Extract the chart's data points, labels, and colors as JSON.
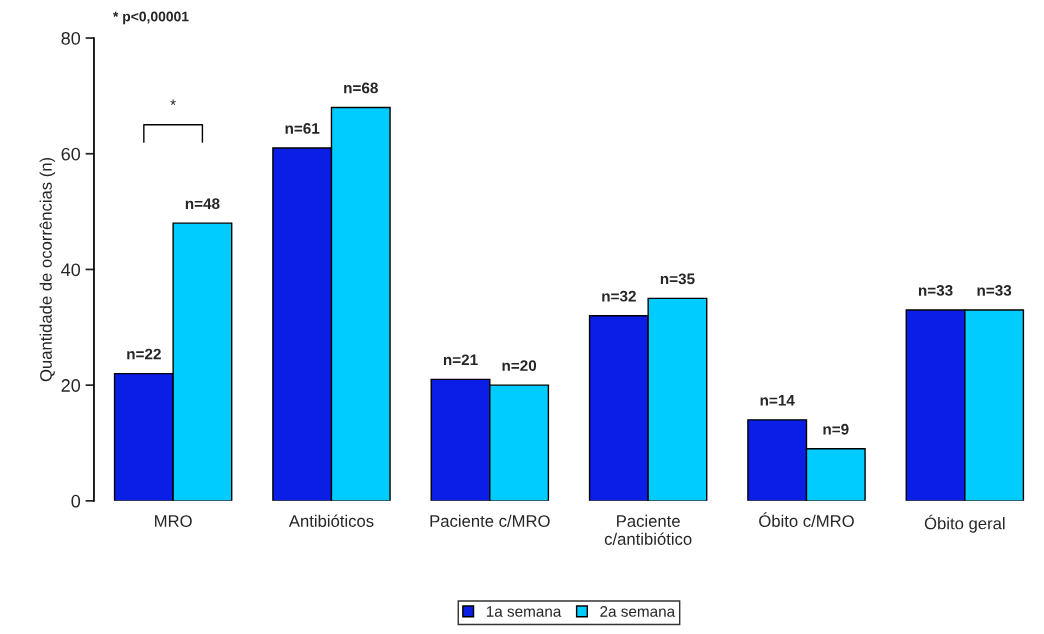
{
  "chart_data": {
    "type": "bar",
    "ylabel": "Quantidade de ocorrências (n)",
    "categories": [
      "MRO",
      "Antibióticos",
      "Paciente c/MRO",
      "Paciente\nc/antibiótico",
      "Óbito c/MRO",
      "Óbito geral"
    ],
    "series": [
      {
        "name": "1a semana",
        "color": "#0a1ee6",
        "values": [
          22,
          61,
          21,
          32,
          14,
          33
        ],
        "value_labels": [
          "n=22",
          "n=61",
          "n=21",
          "n=32",
          "n=14",
          "n=33"
        ]
      },
      {
        "name": "2a semana",
        "color": "#00ccff",
        "values": [
          48,
          68,
          20,
          35,
          9,
          33
        ],
        "value_labels": [
          "n=48",
          "n=68",
          "n=20",
          "n=35",
          "n=9",
          "n=33"
        ]
      }
    ],
    "ylim": [
      0,
      80
    ],
    "yticks": [
      0,
      20,
      40,
      60,
      80
    ],
    "grid": false,
    "legend": "bottom",
    "annotations": [
      "* p<0,00001",
      "*"
    ]
  }
}
